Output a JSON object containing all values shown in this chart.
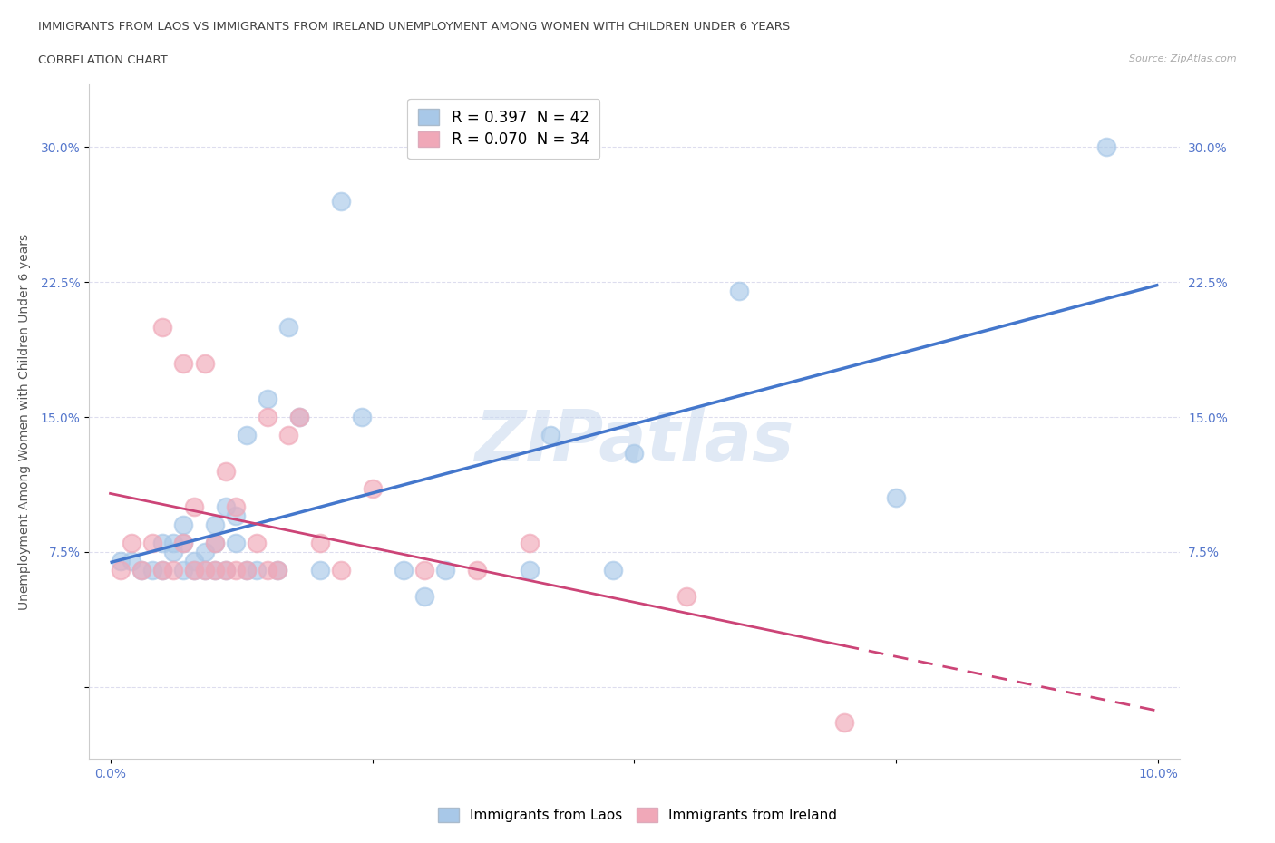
{
  "title_line1": "IMMIGRANTS FROM LAOS VS IMMIGRANTS FROM IRELAND UNEMPLOYMENT AMONG WOMEN WITH CHILDREN UNDER 6 YEARS",
  "title_line2": "CORRELATION CHART",
  "source": "Source: ZipAtlas.com",
  "ylabel": "Unemployment Among Women with Children Under 6 years",
  "xlim": [
    -0.002,
    0.102
  ],
  "ylim": [
    -0.04,
    0.335
  ],
  "xticks": [
    0.0,
    0.025,
    0.05,
    0.075,
    0.1
  ],
  "xtick_labels": [
    "0.0%",
    "",
    "",
    "",
    "10.0%"
  ],
  "ytick_labels": [
    "",
    "7.5%",
    "15.0%",
    "22.5%",
    "30.0%"
  ],
  "yticks": [
    0.0,
    0.075,
    0.15,
    0.225,
    0.3
  ],
  "laos_color": "#a8c8e8",
  "ireland_color": "#f0a8b8",
  "laos_line_color": "#4477cc",
  "ireland_line_color": "#cc4477",
  "laos_R": 0.397,
  "laos_N": 42,
  "ireland_R": 0.07,
  "ireland_N": 34,
  "legend_label_laos": "Immigrants from Laos",
  "legend_label_ireland": "Immigrants from Ireland",
  "watermark": "ZIPatlas",
  "background_color": "#ffffff",
  "laos_scatter_x": [
    0.001,
    0.002,
    0.003,
    0.004,
    0.005,
    0.005,
    0.006,
    0.006,
    0.007,
    0.007,
    0.007,
    0.008,
    0.008,
    0.009,
    0.009,
    0.01,
    0.01,
    0.01,
    0.011,
    0.011,
    0.012,
    0.012,
    0.013,
    0.013,
    0.014,
    0.015,
    0.016,
    0.017,
    0.018,
    0.02,
    0.022,
    0.024,
    0.028,
    0.03,
    0.032,
    0.04,
    0.042,
    0.048,
    0.05,
    0.06,
    0.075,
    0.095
  ],
  "laos_scatter_y": [
    0.07,
    0.07,
    0.065,
    0.065,
    0.08,
    0.065,
    0.08,
    0.075,
    0.09,
    0.065,
    0.08,
    0.065,
    0.07,
    0.075,
    0.065,
    0.09,
    0.08,
    0.065,
    0.1,
    0.065,
    0.095,
    0.08,
    0.14,
    0.065,
    0.065,
    0.16,
    0.065,
    0.2,
    0.15,
    0.065,
    0.27,
    0.15,
    0.065,
    0.05,
    0.065,
    0.065,
    0.14,
    0.065,
    0.13,
    0.22,
    0.105,
    0.3
  ],
  "ireland_scatter_x": [
    0.001,
    0.002,
    0.003,
    0.004,
    0.005,
    0.005,
    0.006,
    0.007,
    0.007,
    0.008,
    0.008,
    0.009,
    0.009,
    0.01,
    0.01,
    0.011,
    0.011,
    0.012,
    0.012,
    0.013,
    0.014,
    0.015,
    0.015,
    0.016,
    0.017,
    0.018,
    0.02,
    0.022,
    0.025,
    0.03,
    0.035,
    0.04,
    0.055,
    0.07
  ],
  "ireland_scatter_y": [
    0.065,
    0.08,
    0.065,
    0.08,
    0.065,
    0.2,
    0.065,
    0.08,
    0.18,
    0.065,
    0.1,
    0.065,
    0.18,
    0.065,
    0.08,
    0.065,
    0.12,
    0.065,
    0.1,
    0.065,
    0.08,
    0.065,
    0.15,
    0.065,
    0.14,
    0.15,
    0.08,
    0.065,
    0.11,
    0.065,
    0.065,
    0.08,
    0.05,
    -0.02
  ]
}
